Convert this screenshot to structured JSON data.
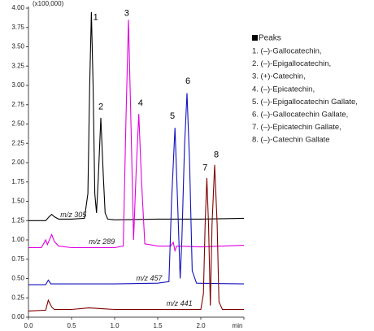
{
  "chart_data": {
    "type": "line",
    "y_multiplier": "(x100,000)",
    "xlim": [
      0,
      2.5
    ],
    "ylim": [
      0,
      4
    ],
    "xticks": [
      {
        "value": 0,
        "label": "0.0"
      },
      {
        "value": 0.5,
        "label": "0.5"
      },
      {
        "value": 1,
        "label": "1.0"
      },
      {
        "value": 1.5,
        "label": "1.5"
      },
      {
        "value": 2,
        "label": "2.0"
      },
      {
        "value": 2.5,
        "label": "min"
      }
    ],
    "yticks": [
      {
        "value": 0,
        "label": "0.00"
      },
      {
        "value": 0.25,
        "label": "0.25"
      },
      {
        "value": 0.5,
        "label": "0.50"
      },
      {
        "value": 0.75,
        "label": "0.75"
      },
      {
        "value": 1,
        "label": "1.00"
      },
      {
        "value": 1.25,
        "label": "1.25"
      },
      {
        "value": 1.5,
        "label": "1.50"
      },
      {
        "value": 1.75,
        "label": "1.75"
      },
      {
        "value": 2,
        "label": "2.00"
      },
      {
        "value": 2.25,
        "label": "2.25"
      },
      {
        "value": 2.5,
        "label": "2.50"
      },
      {
        "value": 2.75,
        "label": "2.75"
      },
      {
        "value": 3,
        "label": "3.00"
      },
      {
        "value": 3.25,
        "label": "3.25"
      },
      {
        "value": 3.5,
        "label": "3.50"
      },
      {
        "value": 3.75,
        "label": "3.75"
      },
      {
        "value": 4,
        "label": "4.00"
      }
    ],
    "series": [
      {
        "name": "m/z 305",
        "color": "#000000",
        "x": [
          0.0,
          0.2,
          0.24,
          0.27,
          0.3,
          0.35,
          0.5,
          0.65,
          0.69,
          0.71,
          0.73,
          0.75,
          0.77,
          0.79,
          0.81,
          0.84,
          0.87,
          0.89,
          0.92,
          1.0,
          1.5,
          2.0,
          2.5
        ],
        "values": [
          1.25,
          1.25,
          1.3,
          1.33,
          1.3,
          1.27,
          1.27,
          1.28,
          1.6,
          3.0,
          3.95,
          3.0,
          1.6,
          1.35,
          1.8,
          2.58,
          1.8,
          1.35,
          1.27,
          1.26,
          1.27,
          1.27,
          1.28
        ]
      },
      {
        "name": "m/z 289",
        "color": "#e000e0",
        "x": [
          0.0,
          0.15,
          0.18,
          0.2,
          0.22,
          0.25,
          0.27,
          0.3,
          0.35,
          0.5,
          1.0,
          1.1,
          1.13,
          1.16,
          1.19,
          1.22,
          1.25,
          1.28,
          1.31,
          1.35,
          1.5,
          1.65,
          1.68,
          1.7,
          1.72,
          2.0,
          2.5
        ],
        "values": [
          0.9,
          0.9,
          0.96,
          1.0,
          0.94,
          1.02,
          1.07,
          0.98,
          0.92,
          0.9,
          0.9,
          0.92,
          2.5,
          3.85,
          2.5,
          1.0,
          1.9,
          2.63,
          1.8,
          0.95,
          0.92,
          0.92,
          0.97,
          0.86,
          0.92,
          0.91,
          0.93
        ]
      },
      {
        "name": "m/z 457",
        "color": "#1010c0",
        "x": [
          0.0,
          0.2,
          0.23,
          0.26,
          0.5,
          1.0,
          1.5,
          1.63,
          1.66,
          1.7,
          1.73,
          1.76,
          1.78,
          1.81,
          1.84,
          1.87,
          1.9,
          1.95,
          2.5
        ],
        "values": [
          0.42,
          0.42,
          0.48,
          0.43,
          0.43,
          0.43,
          0.44,
          0.46,
          1.5,
          2.45,
          1.5,
          0.5,
          1.0,
          2.2,
          2.9,
          2.0,
          0.6,
          0.44,
          0.43
        ]
      },
      {
        "name": "m/z 441",
        "color": "#800000",
        "x": [
          0.0,
          0.2,
          0.23,
          0.27,
          0.3,
          0.5,
          0.7,
          1.0,
          1.5,
          2.0,
          2.03,
          2.05,
          2.07,
          2.09,
          2.11,
          2.13,
          2.16,
          2.19,
          2.21,
          2.25,
          2.5
        ],
        "values": [
          0.08,
          0.09,
          0.22,
          0.13,
          0.1,
          0.1,
          0.12,
          0.1,
          0.1,
          0.1,
          0.3,
          1.2,
          1.8,
          1.2,
          0.15,
          1.2,
          1.97,
          1.2,
          0.2,
          0.1,
          0.1
        ]
      }
    ],
    "peak_labels": [
      "1",
      "2",
      "3",
      "4",
      "5",
      "6",
      "7",
      "8"
    ],
    "legend_title": "Peaks",
    "legend_items": [
      "1. (–)-Gallocatechin,",
      "2. (–)-Epigallocatechin,",
      "3. (+)-Catechin,",
      "4. (–)-Epicatechin,",
      "5. (–)-Epigallocatechin Gallate,",
      "6. (–)-Gallocatechin Gallate,",
      "7. (–)-Epicatechin Gallate,",
      "8. (–)-Catechin Gallate"
    ]
  }
}
